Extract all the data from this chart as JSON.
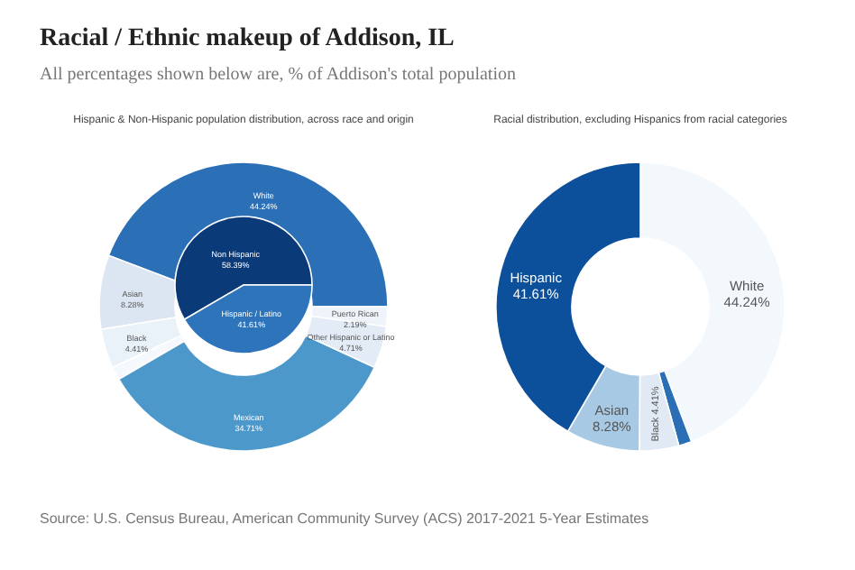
{
  "chart_data": [
    {
      "type": "other",
      "title": "Racial / Ethnic makeup of Addison, IL",
      "subtitle": "All percentages shown below are, % of Addison's total population",
      "annotations": [
        "Source: U.S. Census Bureau, American Community Survey (ACS) 2017-2021 5-Year Estimates"
      ]
    },
    {
      "type": "pie",
      "categories": [
        "Non Hispanic",
        "Hispanic / Latino"
      ],
      "values": [
        58.39,
        41.61
      ],
      "colors": [
        "#0b3a78",
        "#2d74ba"
      ],
      "value_labels": [
        "58.39%",
        "41.61%"
      ]
    },
    {
      "type": "donut",
      "title": "Hispanic & Non-Hispanic population distribution, across race and origin",
      "categories": [
        "White",
        "Asian",
        "Black",
        null,
        "Mexican",
        "Other Hispanic or Latino",
        "Puerto Rican"
      ],
      "values": [
        44.24,
        8.28,
        4.41,
        1.46,
        34.71,
        4.71,
        2.19
      ],
      "colors": [
        "#2b6fb6",
        "#dbe6f2",
        "#e9f1f9",
        "#f5f9fd",
        "#4d98ca",
        "#e3ecf6",
        "#eef4fa"
      ],
      "value_labels": [
        "44.24%",
        "8.28%",
        "4.41%",
        null,
        "34.71%",
        "4.71%",
        "2.19%"
      ]
    },
    {
      "type": "donut",
      "title": "Racial distribution, excluding Hispanics from racial categories",
      "categories": [
        "White",
        null,
        "Black",
        "Asian",
        "Hispanic"
      ],
      "values": [
        44.24,
        1.46,
        4.41,
        8.28,
        41.61
      ],
      "colors": [
        "#f3f8fd",
        "#2a6fb5",
        "#e1e9f5",
        "#a7c9e4",
        "#0c509c"
      ],
      "value_labels": [
        "44.24%",
        null,
        "4.41%",
        "8.28%",
        "41.61%"
      ]
    }
  ]
}
